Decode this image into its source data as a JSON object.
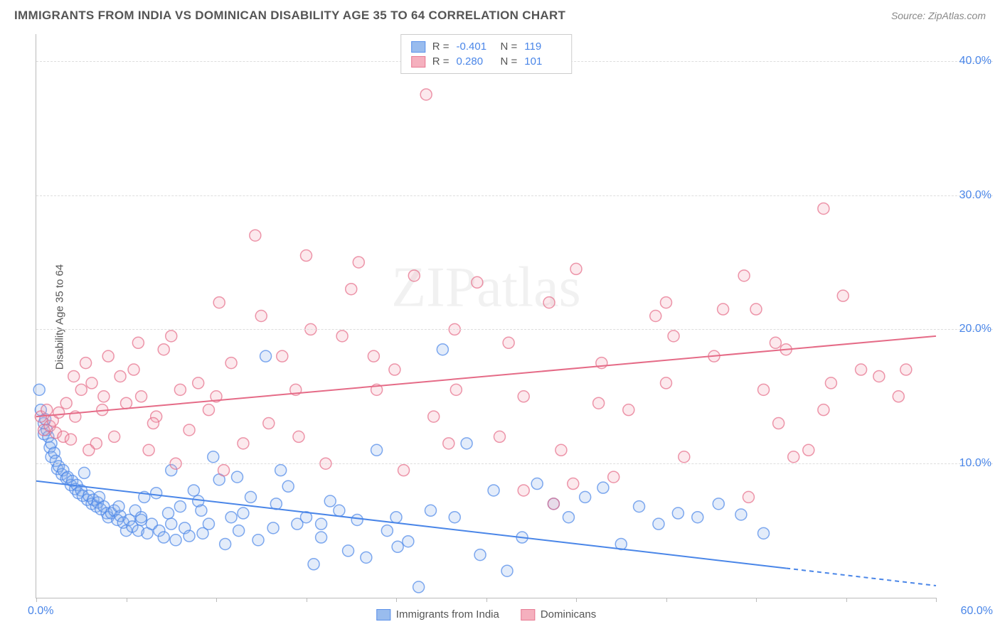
{
  "title": "IMMIGRANTS FROM INDIA VS DOMINICAN DISABILITY AGE 35 TO 64 CORRELATION CHART",
  "source": "Source: ZipAtlas.com",
  "watermark": "ZIPatlas",
  "y_axis": {
    "label": "Disability Age 35 to 64"
  },
  "chart": {
    "type": "scatter",
    "xlim": [
      0,
      60
    ],
    "ylim": [
      0,
      42
    ],
    "x_ticks": [
      0,
      6,
      12,
      18,
      24,
      30,
      36,
      42,
      48,
      54,
      60
    ],
    "y_gridlines": [
      10,
      20,
      30,
      40
    ],
    "y_tick_labels": [
      "10.0%",
      "20.0%",
      "30.0%",
      "40.0%"
    ],
    "x_origin_label": "0.0%",
    "x_max_label": "60.0%",
    "background_color": "#ffffff",
    "grid_color": "#dddddd",
    "axis_color": "#bbbbbb",
    "marker_radius": 8,
    "marker_fill_opacity": 0.25,
    "marker_stroke_width": 1.5,
    "line_width": 2
  },
  "series": [
    {
      "name": "Immigrants from India",
      "color_stroke": "#4a86e8",
      "color_fill": "#8fb5ed",
      "R": "-0.401",
      "N": "119",
      "trend": {
        "x1": 0,
        "y1": 8.7,
        "x2": 50,
        "y2": 2.2,
        "dash_extend_to": 60
      },
      "points": [
        [
          0.2,
          15.5
        ],
        [
          0.3,
          14.0
        ],
        [
          0.5,
          13.0
        ],
        [
          0.5,
          12.2
        ],
        [
          0.6,
          13.3
        ],
        [
          0.7,
          12.5
        ],
        [
          0.8,
          12.0
        ],
        [
          0.9,
          11.2
        ],
        [
          1.0,
          11.5
        ],
        [
          1.0,
          10.5
        ],
        [
          1.2,
          10.8
        ],
        [
          1.3,
          10.2
        ],
        [
          1.4,
          9.6
        ],
        [
          1.5,
          9.8
        ],
        [
          1.7,
          9.2
        ],
        [
          1.8,
          9.5
        ],
        [
          2.0,
          8.9
        ],
        [
          2.1,
          9.0
        ],
        [
          2.3,
          8.4
        ],
        [
          2.4,
          8.7
        ],
        [
          2.6,
          8.1
        ],
        [
          2.7,
          8.4
        ],
        [
          2.8,
          7.8
        ],
        [
          3.0,
          8.0
        ],
        [
          3.1,
          7.6
        ],
        [
          3.2,
          9.3
        ],
        [
          3.4,
          7.3
        ],
        [
          3.5,
          7.6
        ],
        [
          3.7,
          7.0
        ],
        [
          3.8,
          7.3
        ],
        [
          4.0,
          6.8
        ],
        [
          4.1,
          7.1
        ],
        [
          4.3,
          6.6
        ],
        [
          4.5,
          6.8
        ],
        [
          4.7,
          6.3
        ],
        [
          4.8,
          6.0
        ],
        [
          5.0,
          6.3
        ],
        [
          5.2,
          6.5
        ],
        [
          5.4,
          5.8
        ],
        [
          5.6,
          6.1
        ],
        [
          5.8,
          5.6
        ],
        [
          6.0,
          5.0
        ],
        [
          6.2,
          5.8
        ],
        [
          6.4,
          5.3
        ],
        [
          6.6,
          6.5
        ],
        [
          6.8,
          5.0
        ],
        [
          7.0,
          5.8
        ],
        [
          7.2,
          7.5
        ],
        [
          7.4,
          4.8
        ],
        [
          7.7,
          5.5
        ],
        [
          8.0,
          7.8
        ],
        [
          8.2,
          5.0
        ],
        [
          8.5,
          4.5
        ],
        [
          8.8,
          6.3
        ],
        [
          9.0,
          9.5
        ],
        [
          9.3,
          4.3
        ],
        [
          9.6,
          6.8
        ],
        [
          9.9,
          5.2
        ],
        [
          10.2,
          4.6
        ],
        [
          10.5,
          8.0
        ],
        [
          10.8,
          7.2
        ],
        [
          11.1,
          4.8
        ],
        [
          11.5,
          5.5
        ],
        [
          11.8,
          10.5
        ],
        [
          12.2,
          8.8
        ],
        [
          12.6,
          4.0
        ],
        [
          13.0,
          6.0
        ],
        [
          13.4,
          9.0
        ],
        [
          13.8,
          6.3
        ],
        [
          14.3,
          7.5
        ],
        [
          14.8,
          4.3
        ],
        [
          15.3,
          18.0
        ],
        [
          15.8,
          5.2
        ],
        [
          16.3,
          9.5
        ],
        [
          16.8,
          8.3
        ],
        [
          17.4,
          5.5
        ],
        [
          18.0,
          6.0
        ],
        [
          18.5,
          2.5
        ],
        [
          19.0,
          4.5
        ],
        [
          19.6,
          7.2
        ],
        [
          20.2,
          6.5
        ],
        [
          20.8,
          3.5
        ],
        [
          21.4,
          5.8
        ],
        [
          22.0,
          3.0
        ],
        [
          22.7,
          11.0
        ],
        [
          23.4,
          5.0
        ],
        [
          24.1,
          3.8
        ],
        [
          24.8,
          4.2
        ],
        [
          25.5,
          0.8
        ],
        [
          26.3,
          6.5
        ],
        [
          27.1,
          18.5
        ],
        [
          27.9,
          6.0
        ],
        [
          28.7,
          11.5
        ],
        [
          29.6,
          3.2
        ],
        [
          30.5,
          8.0
        ],
        [
          31.4,
          2.0
        ],
        [
          32.4,
          4.5
        ],
        [
          33.4,
          8.5
        ],
        [
          34.5,
          7.0
        ],
        [
          35.5,
          6.0
        ],
        [
          36.6,
          7.5
        ],
        [
          37.8,
          8.2
        ],
        [
          39.0,
          4.0
        ],
        [
          40.2,
          6.8
        ],
        [
          41.5,
          5.5
        ],
        [
          42.8,
          6.3
        ],
        [
          44.1,
          6.0
        ],
        [
          45.5,
          7.0
        ],
        [
          47.0,
          6.2
        ],
        [
          48.5,
          4.8
        ],
        [
          4.2,
          7.5
        ],
        [
          5.5,
          6.8
        ],
        [
          7.0,
          6.0
        ],
        [
          9.0,
          5.5
        ],
        [
          11.0,
          6.5
        ],
        [
          13.5,
          5.0
        ],
        [
          16.0,
          7.0
        ],
        [
          19.0,
          5.5
        ],
        [
          24.0,
          6.0
        ]
      ]
    },
    {
      "name": "Dominicans",
      "color_stroke": "#e56b87",
      "color_fill": "#f4a8b8",
      "R": "0.280",
      "N": "101",
      "trend": {
        "x1": 0,
        "y1": 13.5,
        "x2": 60,
        "y2": 19.5
      },
      "points": [
        [
          0.3,
          13.5
        ],
        [
          0.5,
          12.5
        ],
        [
          0.7,
          14.0
        ],
        [
          0.9,
          12.8
        ],
        [
          1.1,
          13.2
        ],
        [
          1.3,
          12.3
        ],
        [
          1.5,
          13.8
        ],
        [
          1.8,
          12.0
        ],
        [
          2.0,
          14.5
        ],
        [
          2.3,
          11.8
        ],
        [
          2.6,
          13.5
        ],
        [
          3.0,
          15.5
        ],
        [
          3.3,
          17.5
        ],
        [
          3.7,
          16.0
        ],
        [
          4.0,
          11.5
        ],
        [
          4.4,
          14.0
        ],
        [
          4.8,
          18.0
        ],
        [
          5.2,
          12.0
        ],
        [
          5.6,
          16.5
        ],
        [
          6.0,
          14.5
        ],
        [
          6.5,
          17.0
        ],
        [
          7.0,
          15.0
        ],
        [
          7.5,
          11.0
        ],
        [
          8.0,
          13.5
        ],
        [
          8.5,
          18.5
        ],
        [
          9.0,
          19.5
        ],
        [
          9.6,
          15.5
        ],
        [
          10.2,
          12.5
        ],
        [
          10.8,
          16.0
        ],
        [
          11.5,
          14.0
        ],
        [
          12.2,
          22.0
        ],
        [
          13.0,
          17.5
        ],
        [
          13.8,
          11.5
        ],
        [
          14.6,
          27.0
        ],
        [
          15.5,
          13.0
        ],
        [
          16.4,
          18.0
        ],
        [
          17.3,
          15.5
        ],
        [
          18.3,
          20.0
        ],
        [
          19.3,
          10.0
        ],
        [
          20.4,
          19.5
        ],
        [
          21.5,
          25.0
        ],
        [
          22.7,
          15.5
        ],
        [
          23.9,
          17.0
        ],
        [
          25.2,
          24.0
        ],
        [
          26.0,
          37.5
        ],
        [
          26.5,
          13.5
        ],
        [
          27.9,
          20.0
        ],
        [
          29.4,
          23.5
        ],
        [
          30.9,
          12.0
        ],
        [
          32.5,
          15.0
        ],
        [
          34.2,
          22.0
        ],
        [
          35.8,
          8.5
        ],
        [
          36.0,
          24.5
        ],
        [
          37.7,
          17.5
        ],
        [
          39.5,
          14.0
        ],
        [
          41.3,
          21.0
        ],
        [
          42.0,
          22.0
        ],
        [
          43.2,
          10.5
        ],
        [
          45.2,
          18.0
        ],
        [
          47.2,
          24.0
        ],
        [
          48.0,
          21.5
        ],
        [
          48.5,
          15.5
        ],
        [
          49.3,
          19.0
        ],
        [
          50.0,
          18.5
        ],
        [
          51.5,
          11.0
        ],
        [
          52.5,
          29.0
        ],
        [
          53.0,
          16.0
        ],
        [
          53.8,
          22.5
        ],
        [
          55.0,
          17.0
        ],
        [
          56.2,
          16.5
        ],
        [
          58.0,
          17.0
        ],
        [
          2.5,
          16.5
        ],
        [
          4.5,
          15.0
        ],
        [
          6.8,
          19.0
        ],
        [
          9.3,
          10.0
        ],
        [
          12.0,
          15.0
        ],
        [
          15.0,
          21.0
        ],
        [
          18.0,
          25.5
        ],
        [
          21.0,
          23.0
        ],
        [
          24.5,
          9.5
        ],
        [
          28.0,
          15.5
        ],
        [
          31.5,
          19.0
        ],
        [
          35.0,
          11.0
        ],
        [
          38.5,
          9.0
        ],
        [
          42.0,
          16.0
        ],
        [
          45.8,
          21.5
        ],
        [
          49.5,
          13.0
        ],
        [
          50.5,
          10.5
        ],
        [
          3.5,
          11.0
        ],
        [
          7.8,
          13.0
        ],
        [
          12.5,
          9.5
        ],
        [
          17.5,
          12.0
        ],
        [
          22.5,
          18.0
        ],
        [
          27.5,
          11.5
        ],
        [
          32.5,
          8.0
        ],
        [
          37.5,
          14.5
        ],
        [
          42.5,
          19.5
        ],
        [
          47.5,
          7.5
        ],
        [
          52.5,
          14.0
        ],
        [
          57.5,
          15.0
        ],
        [
          34.5,
          7.0
        ]
      ]
    }
  ],
  "legend_bottom": [
    {
      "label": "Immigrants from India",
      "fill": "#8fb5ed",
      "stroke": "#4a86e8"
    },
    {
      "label": "Dominicans",
      "fill": "#f4a8b8",
      "stroke": "#e56b87"
    }
  ]
}
